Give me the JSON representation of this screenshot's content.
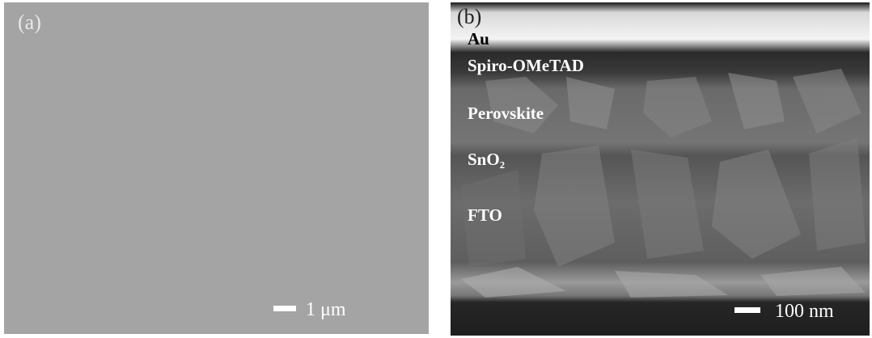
{
  "panels": [
    {
      "label": "(a)",
      "scale_bar": "1 μm"
    },
    {
      "label": "(b)",
      "layers": [
        "Au",
        "Spiro-OMeTAD",
        "Perovskite",
        "SnO₂",
        "FTO"
      ],
      "scale_bar": "100 nm"
    }
  ]
}
